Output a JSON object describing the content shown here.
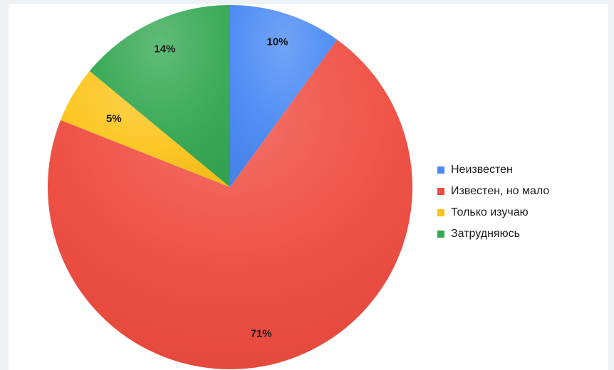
{
  "chart_data": {
    "type": "pie",
    "categories": [
      "Неизвестен",
      "Известен, но мало",
      "Только изучаю",
      "Затрудняюсь"
    ],
    "values": [
      10,
      71,
      5,
      14
    ],
    "value_labels": [
      "10%",
      "71%",
      "5%",
      "14%"
    ],
    "colors": [
      "#4a8af4",
      "#ef4b3f",
      "#fcc51c",
      "#35a853"
    ],
    "start": "top",
    "direction": "clockwise",
    "legend": {
      "position": "right",
      "items": [
        "Неизвестен",
        "Известен, но мало",
        "Только изучаю",
        "Затрудняюсь"
      ]
    }
  }
}
